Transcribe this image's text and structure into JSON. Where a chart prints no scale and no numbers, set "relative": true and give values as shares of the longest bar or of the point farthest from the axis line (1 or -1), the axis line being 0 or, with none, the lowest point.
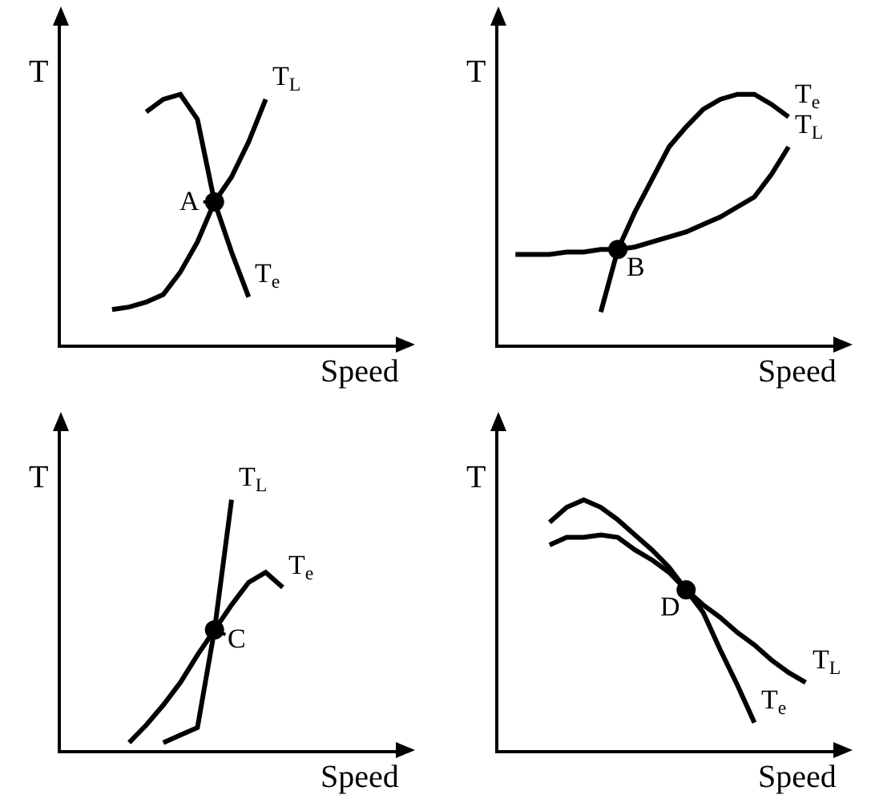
{
  "chart_data": [
    {
      "type": "line",
      "relative": true,
      "ylabel": "T",
      "xlabel": "Speed",
      "annotations": [
        "A"
      ],
      "categories": [
        null,
        null,
        null,
        null,
        null,
        null,
        null,
        null,
        null,
        null,
        null,
        null,
        null,
        null,
        null,
        null,
        null,
        null,
        null,
        null,
        null
      ],
      "series": [
        {
          "name": "T$_{e}$",
          "color": "#000000",
          "values": [
            null,
            null,
            null,
            null,
            null,
            0.93,
            0.98,
            1,
            0.9,
            0.57,
            0.37,
            0.19,
            null,
            null,
            null,
            null,
            null,
            null,
            null,
            null,
            null
          ]
        },
        {
          "name": "T$_{L}$",
          "color": "#000000",
          "values": [
            null,
            null,
            null,
            0.14,
            0.15,
            0.17,
            0.2,
            0.29,
            0.41,
            0.57,
            0.67,
            0.81,
            0.98,
            null,
            null,
            null,
            null,
            null,
            null,
            null,
            null
          ]
        }
      ]
    },
    {
      "type": "line",
      "relative": true,
      "ylabel": "T",
      "xlabel": "Speed",
      "annotations": [
        "B"
      ],
      "categories": [
        null,
        null,
        null,
        null,
        null,
        null,
        null,
        null,
        null,
        null,
        null,
        null,
        null,
        null,
        null,
        null,
        null,
        null,
        null,
        null,
        null
      ],
      "series": [
        {
          "name": "T$_{e}$",
          "color": "#000000",
          "values": [
            null,
            null,
            null,
            null,
            null,
            null,
            0.13,
            0.38,
            0.53,
            0.66,
            0.79,
            0.87,
            0.94,
            0.98,
            1,
            1,
            0.96,
            0.91,
            null,
            null,
            null
          ]
        },
        {
          "name": "T$_{L}$",
          "color": "#000000",
          "values": [
            null,
            0.36,
            0.36,
            0.36,
            0.37,
            0.37,
            0.38,
            0.38,
            0.39,
            0.41,
            0.43,
            0.45,
            0.48,
            0.51,
            0.55,
            0.59,
            0.68,
            0.79,
            null,
            null,
            null
          ]
        }
      ]
    },
    {
      "type": "line",
      "relative": true,
      "ylabel": "T",
      "xlabel": "Speed",
      "annotations": [
        "C"
      ],
      "categories": [
        null,
        null,
        null,
        null,
        null,
        null,
        null,
        null,
        null,
        null,
        null,
        null,
        null,
        null,
        null,
        null,
        null,
        null,
        null,
        null,
        null
      ],
      "series": [
        {
          "name": "T$_{e}$",
          "color": "#000000",
          "values": [
            null,
            null,
            null,
            null,
            0.03,
            0.1,
            0.18,
            0.27,
            0.38,
            0.48,
            0.58,
            0.67,
            0.71,
            0.65,
            null,
            null,
            null,
            null,
            null,
            null,
            null
          ]
        },
        {
          "name": "T$_{L}$",
          "color": "#000000",
          "values": [
            null,
            null,
            null,
            null,
            null,
            null,
            0.03,
            0.06,
            0.09,
            0.48,
            1,
            null,
            null,
            null,
            null,
            null,
            null,
            null,
            null,
            null,
            null
          ]
        }
      ]
    },
    {
      "type": "line",
      "relative": true,
      "ylabel": "T",
      "xlabel": "Speed",
      "annotations": [
        "D"
      ],
      "categories": [
        null,
        null,
        null,
        null,
        null,
        null,
        null,
        null,
        null,
        null,
        null,
        null,
        null,
        null,
        null,
        null,
        null,
        null,
        null,
        null,
        null
      ],
      "series": [
        {
          "name": "T$_{e}$",
          "color": "#000000",
          "values": [
            null,
            null,
            null,
            0.91,
            0.97,
            1,
            0.97,
            0.92,
            0.86,
            0.8,
            0.73,
            0.64,
            0.55,
            0.4,
            0.26,
            0.11,
            null,
            null,
            null,
            null,
            null
          ]
        },
        {
          "name": "T$_{L}$",
          "color": "#000000",
          "values": [
            null,
            null,
            null,
            0.82,
            0.85,
            0.85,
            0.86,
            0.85,
            0.8,
            0.76,
            0.71,
            0.64,
            0.58,
            0.53,
            0.47,
            0.42,
            0.36,
            0.31,
            0.27,
            null,
            null
          ]
        }
      ]
    }
  ]
}
